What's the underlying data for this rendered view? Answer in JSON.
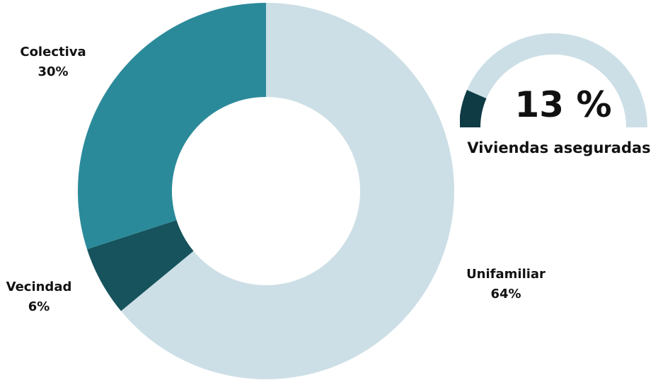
{
  "chart_data": [
    {
      "type": "pie",
      "variant": "donut",
      "slices": [
        {
          "label": "Unifamiliar",
          "value": 64,
          "value_label": "64%",
          "color": "#cddfe6"
        },
        {
          "label": "Vecindad",
          "value": 6,
          "value_label": "6%",
          "color": "#16535d"
        },
        {
          "label": "Colectiva",
          "value": 30,
          "value_label": "30%",
          "color": "#2b8a9a"
        }
      ]
    },
    {
      "type": "gauge",
      "value": 13,
      "max": 100,
      "value_label": "13 %",
      "label": "Viviendas aseguradas",
      "fill_color": "#0f3b45",
      "track_color": "#cddfe6"
    }
  ]
}
